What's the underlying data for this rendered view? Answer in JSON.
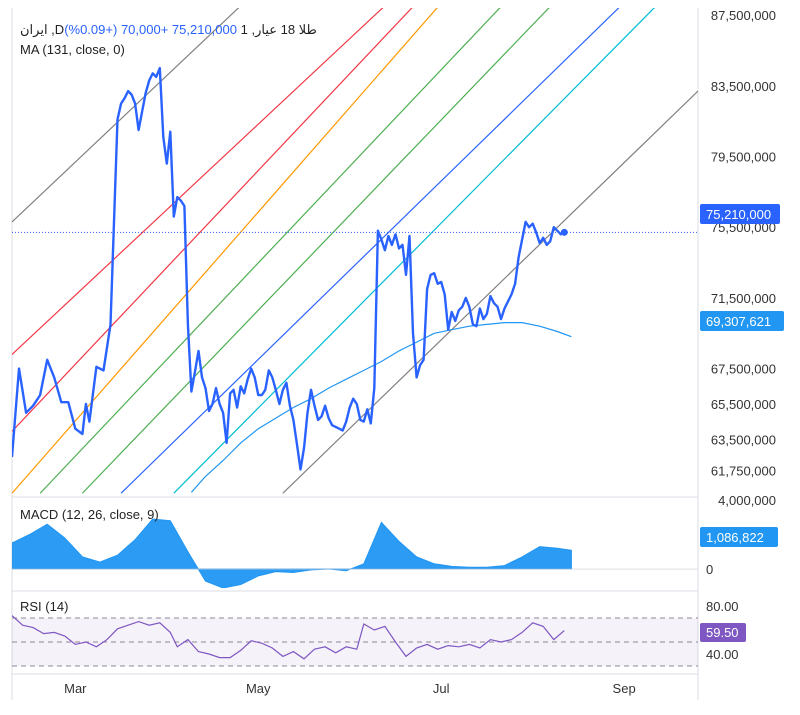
{
  "header": {
    "symbol": "ایران ,Dطلا 18 عیار, 1",
    "price": "75,210,000",
    "change": "+70,000 (+0.09%)",
    "ma_label": "MA (131, close, 0)"
  },
  "panels": {
    "macd_label": "MACD (12, 26, close, 9)",
    "rsi_label": "RSI (14)"
  },
  "price_tag": "75,210,000",
  "ma_tag": "69,307,621",
  "macd_tag": "1,086,822",
  "rsi_tag": "59.50",
  "colors": {
    "price_line": "#2962ff",
    "ma_line": "#2196f3",
    "macd_fill": "#2196f3",
    "rsi_line": "#7e57c2",
    "rsi_tag": "#7e57c2",
    "pitchfork": [
      "#808080",
      "#f23645",
      "#f23645",
      "#ff9800",
      "#4caf50",
      "#4caf50",
      "#2962ff",
      "#00bcd4",
      "#808080"
    ]
  },
  "chart_data": {
    "type": "line",
    "title": "ایران ,Dطلا 18 عیار, 1",
    "price_axis": {
      "range": [
        60350000,
        87900000
      ],
      "tick_labels": [
        "87,500,000",
        "83,500,000",
        "79,500,000",
        "75,500,000",
        "71,500,000",
        "67,500,000",
        "65,500,000",
        "63,500,000",
        "61,750,000"
      ],
      "tick_values": [
        87500000,
        83500000,
        79500000,
        75500000,
        71500000,
        67500000,
        65500000,
        63500000,
        61750000
      ]
    },
    "x_axis": {
      "day_range": [
        0,
        195
      ],
      "tick_labels": [
        "Mar",
        "May",
        "Jul",
        "Sep"
      ],
      "tick_days": [
        18,
        70,
        122,
        174
      ]
    },
    "series": [
      {
        "name": "Price",
        "x": [
          0,
          2,
          4,
          6,
          8,
          10,
          12,
          14,
          16,
          18,
          20,
          21,
          22,
          24,
          26,
          28,
          30,
          31,
          32,
          33,
          34,
          35,
          36,
          38,
          39,
          40,
          41,
          42,
          43,
          44,
          45,
          46,
          47,
          48,
          49,
          50,
          51,
          52,
          53,
          54,
          55,
          56,
          57,
          58,
          59,
          60,
          61,
          62,
          63,
          64,
          65,
          66,
          67,
          68,
          69,
          70,
          71,
          72,
          73,
          74,
          75,
          76,
          77,
          78,
          79,
          80,
          81,
          82,
          83,
          84,
          85,
          86,
          87,
          88,
          89,
          90,
          91,
          92,
          93,
          94,
          95,
          96,
          97,
          98,
          99,
          100,
          101,
          102,
          103,
          104,
          105,
          106,
          107,
          108,
          109,
          110,
          111,
          112,
          113,
          114,
          115,
          116,
          117,
          118,
          119,
          120,
          121,
          122,
          123,
          124,
          125,
          126,
          127,
          128,
          129,
          130,
          131,
          132,
          133,
          134,
          135,
          136,
          137,
          138,
          139,
          140,
          141,
          142,
          143,
          144,
          145,
          146,
          147,
          148,
          149,
          150,
          151,
          152,
          153,
          154,
          155,
          156,
          157
        ],
        "values": [
          62500000,
          67500000,
          65000000,
          65400000,
          66000000,
          68000000,
          67000000,
          65600000,
          65600000,
          64100000,
          63800000,
          65500000,
          64500000,
          67600000,
          67400000,
          70000000,
          81600000,
          82500000,
          82800000,
          83200000,
          83000000,
          82500000,
          81000000,
          83100000,
          83800000,
          84200000,
          84000000,
          84500000,
          80600000,
          79100000,
          80900000,
          76100000,
          77200000,
          77000000,
          76700000,
          70000000,
          66200000,
          67300000,
          68500000,
          67000000,
          66400000,
          65100000,
          65500000,
          66400000,
          65500000,
          65000000,
          63300000,
          66100000,
          66300000,
          65300000,
          66500000,
          66100000,
          66900000,
          67500000,
          67000000,
          66000000,
          66000000,
          66300000,
          67400000,
          67000000,
          66300000,
          65500000,
          66300000,
          66700000,
          65400000,
          64600000,
          63200000,
          61800000,
          63000000,
          65000000,
          66300000,
          65400000,
          64600000,
          64800000,
          65400000,
          64700000,
          64300000,
          64200000,
          64100000,
          64000000,
          64500000,
          65300000,
          65800000,
          65500000,
          64600000,
          64500000,
          65200000,
          64400000,
          66400000,
          75300000,
          74800000,
          74200000,
          75000000,
          74500000,
          75100000,
          74300000,
          74500000,
          72800000,
          75000000,
          69500000,
          67000000,
          67700000,
          68000000,
          72000000,
          72800000,
          72900000,
          72300000,
          72400000,
          71700000,
          69700000,
          70700000,
          70200000,
          70800000,
          71000000,
          71500000,
          71000000,
          70000000,
          69900000,
          70900000,
          70300000,
          70600000,
          71600000,
          71200000,
          71000000,
          70300000,
          70900000,
          71300000,
          71700000,
          72300000,
          73800000,
          74800000,
          75800000,
          75500000,
          75700000,
          75200000,
          74600000,
          74900000,
          74500000,
          74700000,
          75500000,
          75300000,
          75100000,
          75210000
        ]
      },
      {
        "name": "MA (131, close, 0)",
        "x": [
          51,
          55,
          60,
          65,
          70,
          75,
          80,
          85,
          90,
          95,
          100,
          105,
          110,
          115,
          120,
          125,
          130,
          135,
          140,
          145,
          150,
          155,
          159
        ],
        "values": [
          60500000,
          61400000,
          62300000,
          63300000,
          64100000,
          64700000,
          65300000,
          65800000,
          66400000,
          66900000,
          67400000,
          67900000,
          68500000,
          69000000,
          69500000,
          69700000,
          69900000,
          70000000,
          70100000,
          70100000,
          69900000,
          69600000,
          69307621
        ]
      }
    ],
    "pitchfork": {
      "type": "andrews_pitchfork_lines",
      "lines": [
        {
          "name": "upper-gray",
          "start": [
            0,
            75800000
          ],
          "end": [
            67,
            88400000
          ]
        },
        {
          "name": "red-1",
          "start": [
            0,
            68300000
          ],
          "end": [
            108,
            88400000
          ]
        },
        {
          "name": "red-2",
          "start": [
            0,
            63950000
          ],
          "end": [
            116,
            88400000
          ]
        },
        {
          "name": "orange",
          "start": [
            0,
            60450000
          ],
          "end": [
            123,
            88400000
          ]
        },
        {
          "name": "green-1",
          "start": [
            8,
            60450000
          ],
          "end": [
            141,
            88400000
          ]
        },
        {
          "name": "green-2",
          "start": [
            20,
            60450000
          ],
          "end": [
            155,
            88400000
          ]
        },
        {
          "name": "blue",
          "start": [
            31,
            60450000
          ],
          "end": [
            175,
            88400000
          ]
        },
        {
          "name": "cyan",
          "start": [
            46,
            60450000
          ],
          "end": [
            185,
            88400000
          ]
        },
        {
          "name": "lower-gray",
          "start": [
            77,
            60450000
          ],
          "end": [
            195,
            83200000
          ]
        }
      ]
    },
    "macd": {
      "name": "MACD (12, 26, close, 9)",
      "range": [
        -1100000,
        4000000
      ],
      "tick_labels": [
        "4,000,000",
        "0"
      ],
      "tick_values": [
        4000000,
        0
      ],
      "current": 1086822,
      "x": [
        0,
        5,
        10,
        15,
        20,
        25,
        30,
        35,
        40,
        45,
        50,
        55,
        60,
        65,
        70,
        75,
        80,
        85,
        90,
        95,
        100,
        105,
        110,
        115,
        120,
        125,
        130,
        135,
        140,
        145,
        150,
        155,
        159
      ],
      "values": [
        1500000,
        2000000,
        2600000,
        1800000,
        700000,
        400000,
        800000,
        1700000,
        2900000,
        2800000,
        1000000,
        -700000,
        -1100000,
        -900000,
        -400000,
        -150000,
        -200000,
        -50000,
        0,
        -100000,
        300000,
        2700000,
        1600000,
        700000,
        300000,
        150000,
        100000,
        100000,
        200000,
        700000,
        1300000,
        1200000,
        1086822
      ]
    },
    "rsi": {
      "name": "RSI (14)",
      "range": [
        25,
        90
      ],
      "tick_labels": [
        "80.00",
        "40.00"
      ],
      "tick_values": [
        80,
        40
      ],
      "band": [
        30,
        70
      ],
      "midline": 50,
      "current": 59.5,
      "x": [
        0,
        3,
        6,
        9,
        12,
        15,
        18,
        21,
        24,
        27,
        30,
        33,
        36,
        39,
        42,
        45,
        47,
        50,
        53,
        56,
        59,
        62,
        65,
        68,
        71,
        74,
        77,
        80,
        83,
        86,
        89,
        92,
        95,
        98,
        100,
        103,
        106,
        109,
        112,
        115,
        118,
        121,
        124,
        127,
        130,
        133,
        136,
        139,
        142,
        145,
        148,
        151,
        154,
        157
      ],
      "values": [
        72,
        64,
        62,
        57,
        58,
        55,
        48,
        50,
        46,
        52,
        61,
        64,
        67,
        64,
        66,
        58,
        46,
        52,
        42,
        40,
        37,
        37,
        43,
        51,
        49,
        45,
        38,
        42,
        36,
        44,
        46,
        41,
        46,
        44,
        65,
        60,
        63,
        50,
        38,
        45,
        48,
        44,
        47,
        46,
        48,
        45,
        52,
        50,
        52,
        58,
        66,
        63,
        52,
        59.5
      ]
    }
  }
}
